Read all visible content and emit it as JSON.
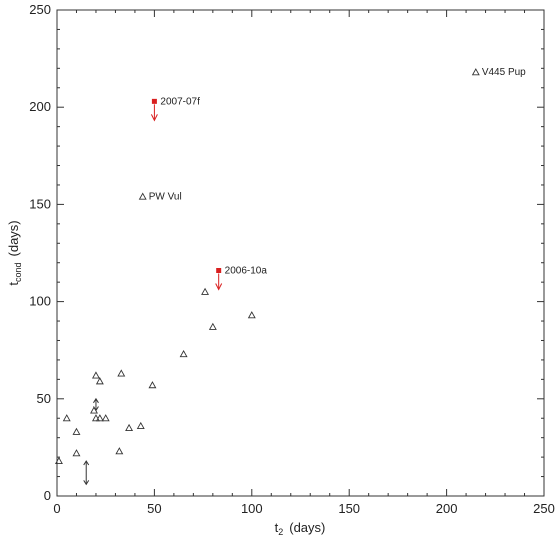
{
  "chart_data": {
    "type": "scatter",
    "xlabel": "t",
    "xlabel_sub": "2",
    "xlabel_unit": "(days)",
    "ylabel": "t",
    "ylabel_sub": "cond",
    "ylabel_unit": "(days)",
    "xlim": [
      0,
      250
    ],
    "ylim": [
      0,
      250
    ],
    "xticks": [
      0,
      50,
      100,
      150,
      200,
      250
    ],
    "yticks": [
      0,
      50,
      100,
      150,
      200,
      250
    ],
    "grid": false,
    "series": [
      {
        "marker": "triangle",
        "color": "#333333",
        "points": [
          {
            "x": 1,
            "y": 18
          },
          {
            "x": 5,
            "y": 40
          },
          {
            "x": 10,
            "y": 33
          },
          {
            "x": 10,
            "y": 22
          },
          {
            "x": 20,
            "y": 62
          },
          {
            "x": 22,
            "y": 59
          },
          {
            "x": 19,
            "y": 44
          },
          {
            "x": 20,
            "y": 40
          },
          {
            "x": 22,
            "y": 40
          },
          {
            "x": 25,
            "y": 40
          },
          {
            "x": 33,
            "y": 63
          },
          {
            "x": 32,
            "y": 23
          },
          {
            "x": 37,
            "y": 35
          },
          {
            "x": 43,
            "y": 36
          },
          {
            "x": 49,
            "y": 57
          },
          {
            "x": 65,
            "y": 73
          },
          {
            "x": 76,
            "y": 105
          },
          {
            "x": 80,
            "y": 87
          },
          {
            "x": 100,
            "y": 93
          },
          {
            "x": 44,
            "y": 154,
            "label": "PW Vul"
          },
          {
            "x": 215,
            "y": 218,
            "label": "V445 Pup"
          }
        ]
      },
      {
        "marker": "square",
        "color": "#d91f1f",
        "upper_limit": true,
        "points": [
          {
            "x": 50,
            "y": 203,
            "label": "2007-07f"
          },
          {
            "x": 83,
            "y": 116,
            "label": "2006-10a"
          }
        ]
      }
    ],
    "double_arrows": [
      {
        "x": 15,
        "y1": 6,
        "y2": 18
      },
      {
        "x": 20,
        "y1": 44,
        "y2": 50
      }
    ]
  }
}
